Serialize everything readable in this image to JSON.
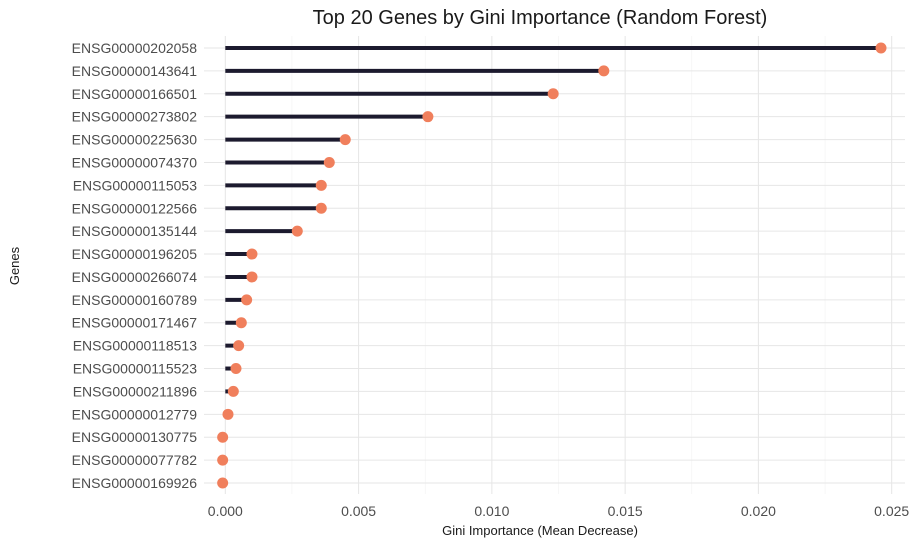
{
  "chart_data": {
    "type": "lollipop",
    "title": "Top 20 Genes by Gini Importance (Random Forest)",
    "xlabel": "Gini Importance (Mean Decrease)",
    "ylabel": "Genes",
    "xlim": [
      -0.0008,
      0.0255
    ],
    "x_ticks": [
      0.0,
      0.005,
      0.01,
      0.015,
      0.02,
      0.025
    ],
    "x_tick_labels": [
      "0.000",
      "0.005",
      "0.010",
      "0.015",
      "0.020",
      "0.025"
    ],
    "grid": true,
    "stem_color": "#1c1a2e",
    "point_color": "#f07f5c",
    "categories": [
      "ENSG00000202058",
      "ENSG00000143641",
      "ENSG00000166501",
      "ENSG00000273802",
      "ENSG00000225630",
      "ENSG00000074370",
      "ENSG00000115053",
      "ENSG00000122566",
      "ENSG00000135144",
      "ENSG00000196205",
      "ENSG00000266074",
      "ENSG00000160789",
      "ENSG00000171467",
      "ENSG00000118513",
      "ENSG00000115523",
      "ENSG00000211896",
      "ENSG00000012779",
      "ENSG00000130775",
      "ENSG00000077782",
      "ENSG00000169926"
    ],
    "values": [
      0.0246,
      0.0142,
      0.0123,
      0.0076,
      0.0045,
      0.0039,
      0.0036,
      0.0036,
      0.0027,
      0.001,
      0.001,
      0.0008,
      0.0006,
      0.0005,
      0.0004,
      0.0003,
      0.0001,
      -0.0001,
      -0.0001,
      -0.0001
    ]
  }
}
